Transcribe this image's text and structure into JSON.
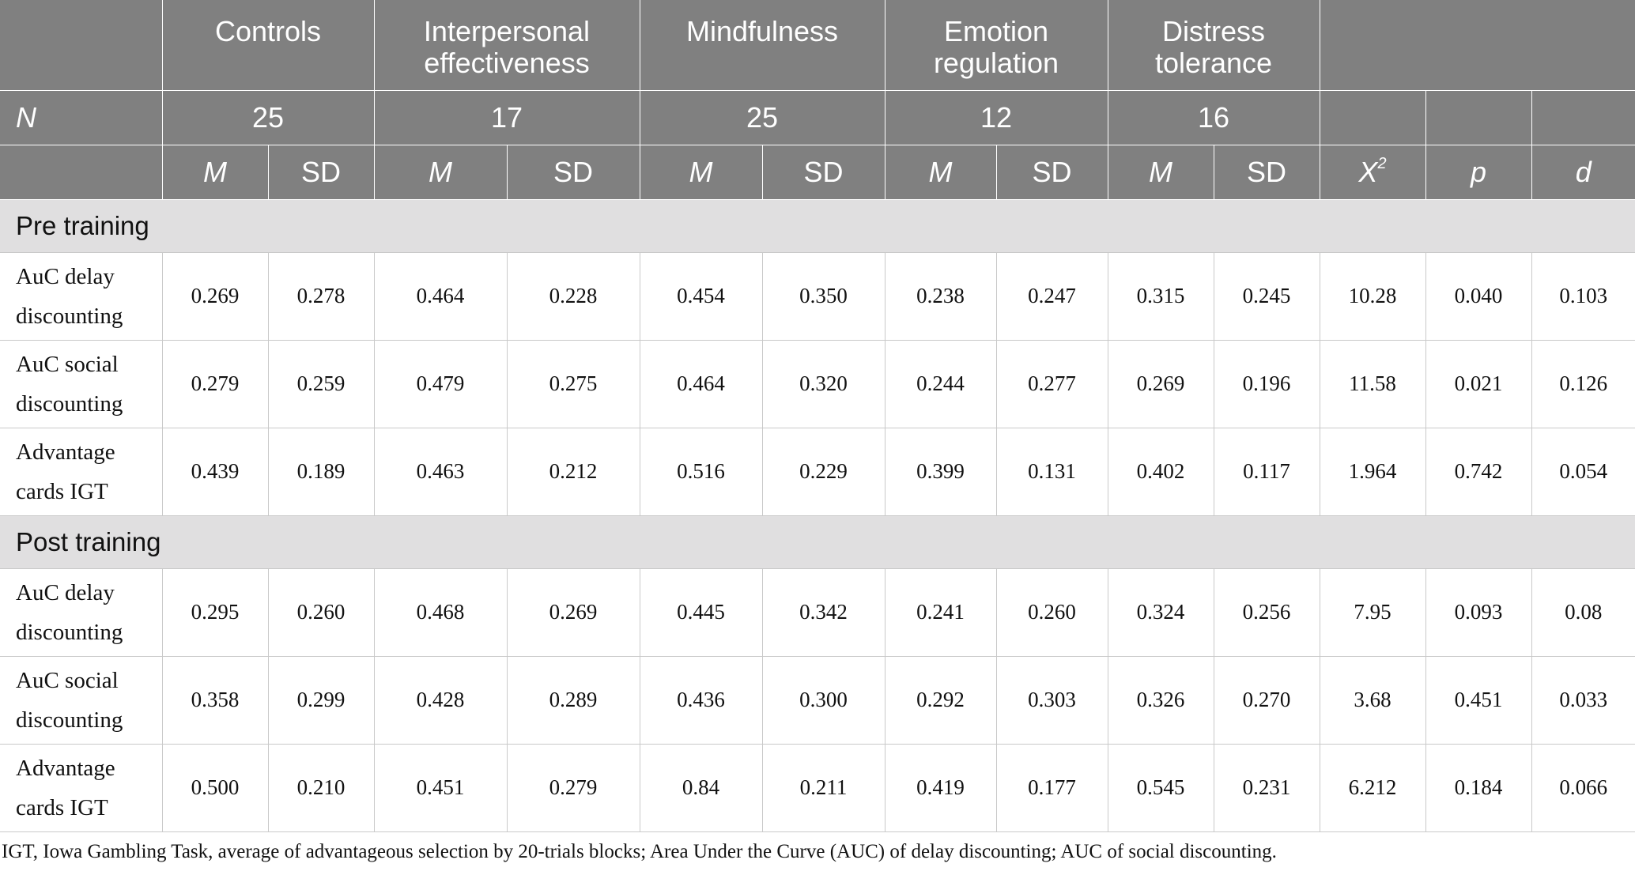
{
  "header": {
    "groups": [
      "Controls",
      "Interpersonal effectiveness",
      "Mindfulness",
      "Emotion regulation",
      "Distress tolerance"
    ],
    "n_label": "N",
    "n_values": [
      "25",
      "17",
      "25",
      "12",
      "16"
    ],
    "m_label": "M",
    "sd_label": "SD",
    "chi_label": "X",
    "chi_sup": "2",
    "p_label": "p",
    "d_label": "d"
  },
  "sections": [
    {
      "title": "Pre training",
      "rows": [
        {
          "label": "AuC delay discounting",
          "values": [
            "0.269",
            "0.278",
            "0.464",
            "0.228",
            "0.454",
            "0.350",
            "0.238",
            "0.247",
            "0.315",
            "0.245",
            "10.28",
            "0.040",
            "0.103"
          ]
        },
        {
          "label": "AuC social discounting",
          "values": [
            "0.279",
            "0.259",
            "0.479",
            "0.275",
            "0.464",
            "0.320",
            "0.244",
            "0.277",
            "0.269",
            "0.196",
            "11.58",
            "0.021",
            "0.126"
          ]
        },
        {
          "label": "Advantage cards IGT",
          "values": [
            "0.439",
            "0.189",
            "0.463",
            "0.212",
            "0.516",
            "0.229",
            "0.399",
            "0.131",
            "0.402",
            "0.117",
            "1.964",
            "0.742",
            "0.054"
          ]
        }
      ]
    },
    {
      "title": "Post training",
      "rows": [
        {
          "label": "AuC delay discounting",
          "values": [
            "0.295",
            "0.260",
            "0.468",
            "0.269",
            "0.445",
            "0.342",
            "0.241",
            "0.260",
            "0.324",
            "0.256",
            "7.95",
            "0.093",
            "0.08"
          ]
        },
        {
          "label": "AuC social discounting",
          "values": [
            "0.358",
            "0.299",
            "0.428",
            "0.289",
            "0.436",
            "0.300",
            "0.292",
            "0.303",
            "0.326",
            "0.270",
            "3.68",
            "0.451",
            "0.033"
          ]
        },
        {
          "label": "Advantage cards IGT",
          "values": [
            "0.500",
            "0.210",
            "0.451",
            "0.279",
            "0.84",
            "0.211",
            "0.419",
            "0.177",
            "0.545",
            "0.231",
            "6.212",
            "0.184",
            "0.066"
          ]
        }
      ]
    }
  ],
  "footnote": "IGT, Iowa Gambling Task, average of advantageous selection by 20-trials blocks; Area Under the Curve (AUC) of delay discounting; AUC of social discounting."
}
